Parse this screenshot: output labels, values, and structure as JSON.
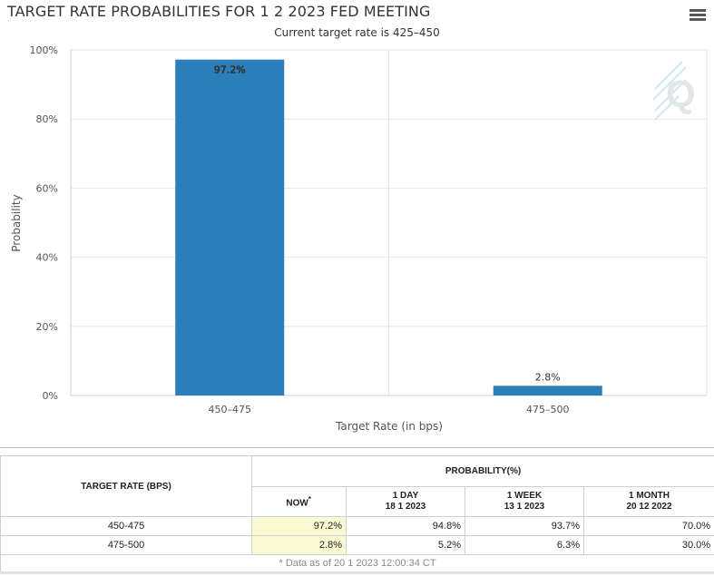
{
  "header": {
    "title": "TARGET RATE PROBABILITIES FOR 1 2 2023 FED MEETING",
    "subtitle": "Current target rate is 425–450",
    "menu_icon": "hamburger-menu-icon",
    "watermark_icon": "q-logo-icon"
  },
  "chart_data": {
    "type": "bar",
    "title": "TARGET RATE PROBABILITIES FOR 1 2 2023 FED MEETING",
    "subtitle": "Current target rate is 425–450",
    "categories": [
      "450–475",
      "475–500"
    ],
    "values": [
      97.2,
      2.8
    ],
    "data_labels": [
      "97.2%",
      "2.8%"
    ],
    "xlabel": "Target Rate (in bps)",
    "ylabel": "Probability",
    "ylim": [
      0,
      100
    ],
    "yticks": [
      0,
      20,
      40,
      60,
      80,
      100
    ],
    "ytick_labels": [
      "0%",
      "20%",
      "40%",
      "60%",
      "80%",
      "100%"
    ],
    "bar_color": "#2a7fba",
    "grid": true
  },
  "table": {
    "rate_header": "TARGET RATE (BPS)",
    "prob_header": "PROBABILITY(%)",
    "columns": [
      {
        "label": "NOW",
        "sup": "*",
        "date": ""
      },
      {
        "label": "1 DAY",
        "date": "18 1 2023"
      },
      {
        "label": "1 WEEK",
        "date": "13 1 2023"
      },
      {
        "label": "1 MONTH",
        "date": "20 12 2022"
      }
    ],
    "rows": [
      {
        "rate": "450-475",
        "values": [
          "97.2%",
          "94.8%",
          "93.7%",
          "70.0%"
        ]
      },
      {
        "rate": "475-500",
        "values": [
          "2.8%",
          "5.2%",
          "6.3%",
          "30.0%"
        ]
      }
    ],
    "footnote": "* Data as of 20 1 2023 12:00:34 CT",
    "now_highlight_color": "#fafad2"
  }
}
